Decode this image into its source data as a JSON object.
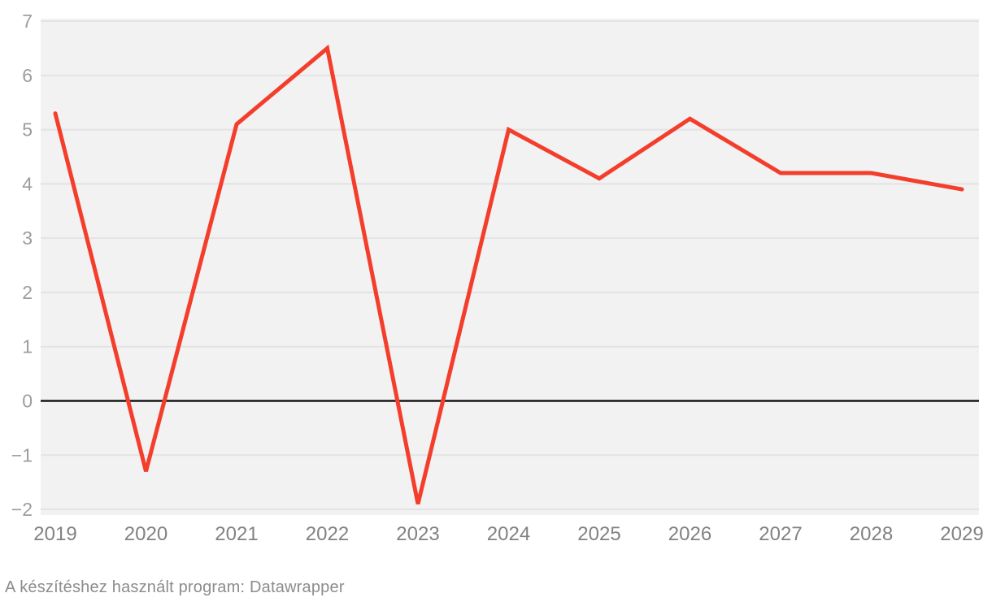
{
  "chart_data": {
    "type": "line",
    "categories": [
      "2019",
      "2020",
      "2021",
      "2022",
      "2023",
      "2024",
      "2025",
      "2026",
      "2027",
      "2028",
      "2029"
    ],
    "values": [
      5.3,
      -1.3,
      5.1,
      6.5,
      -1.9,
      5.0,
      4.1,
      5.2,
      4.2,
      4.2,
      3.9
    ],
    "title": "",
    "xlabel": "",
    "ylabel": "",
    "ylim": [
      -2,
      7
    ],
    "yticks": [
      7,
      6,
      5,
      4,
      3,
      2,
      1,
      0,
      -1,
      -2
    ],
    "grid": true,
    "zero_baseline": true,
    "legend": "none"
  },
  "footer": {
    "text": "A készítéshez használt program: Datawrapper"
  },
  "colors": {
    "line": "#f43e2c",
    "plot_background": "#f2f2f2",
    "gridline": "#e3e3e3",
    "zero_line": "#161616",
    "y_tick_label": "#9d9d9d",
    "x_tick_label": "#828282",
    "footer_text": "#8c8c8c",
    "page_background": "#ffffff"
  }
}
